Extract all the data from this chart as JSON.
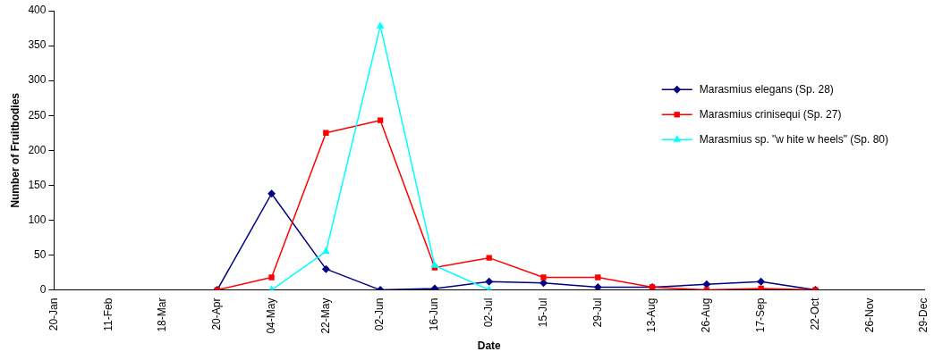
{
  "chart_data": {
    "type": "line",
    "xlabel": "Date",
    "ylabel": "Number of Fruitbodies",
    "categories": [
      "20-Jan",
      "11-Feb",
      "18-Mar",
      "20-Apr",
      "04-May",
      "22-May",
      "02-Jun",
      "16-Jun",
      "02-Jul",
      "15-Jul",
      "29-Jul",
      "13-Aug",
      "26-Aug",
      "17-Sep",
      "22-Oct",
      "26-Nov",
      "29-Dec"
    ],
    "series": [
      {
        "name": "Marasmius elegans (Sp. 28)",
        "color": "#000080",
        "marker": "diamond",
        "values": [
          null,
          null,
          null,
          0,
          138,
          30,
          0,
          2,
          12,
          10,
          4,
          4,
          8,
          12,
          0,
          null,
          null
        ]
      },
      {
        "name": "Marasmius crinisequi (Sp. 27)",
        "color": "#ff0000",
        "marker": "square",
        "values": [
          null,
          null,
          null,
          0,
          18,
          225,
          243,
          32,
          46,
          18,
          18,
          4,
          0,
          2,
          0,
          null,
          null
        ]
      },
      {
        "name": "Marasmius sp. \"w hite w heels\" (Sp. 80)",
        "color": "#00ffff",
        "marker": "triangle",
        "values": [
          null,
          null,
          null,
          null,
          0,
          55,
          378,
          35,
          0,
          null,
          null,
          null,
          null,
          null,
          null,
          null,
          null
        ]
      }
    ],
    "ylim": [
      0,
      400
    ],
    "yticks": [
      0,
      50,
      100,
      150,
      200,
      250,
      300,
      350,
      400
    ],
    "grid": false,
    "legend": "right",
    "line_style": "solid"
  }
}
